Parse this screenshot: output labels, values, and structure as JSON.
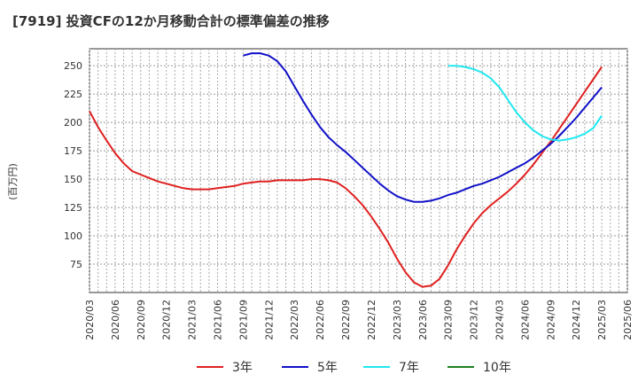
{
  "chart_data": {
    "type": "line",
    "title": "[7919]  投資CFの12か月移動合計の標準偏差の推移",
    "ylabel": "(百万円)",
    "xlabel": "",
    "ylim": [
      50,
      265
    ],
    "yticks": [
      75,
      100,
      125,
      150,
      175,
      200,
      225,
      250
    ],
    "xticks": [
      "2020/03",
      "2020/06",
      "2020/09",
      "2020/12",
      "2021/03",
      "2021/06",
      "2021/09",
      "2021/12",
      "2022/03",
      "2022/06",
      "2022/09",
      "2022/12",
      "2023/03",
      "2023/06",
      "2023/09",
      "2023/12",
      "2024/03",
      "2024/06",
      "2024/09",
      "2024/12",
      "2025/03",
      "2025/06"
    ],
    "grid": true,
    "legend_position": "bottom",
    "series": [
      {
        "name": "3年",
        "color": "#e02020",
        "points": [
          [
            "2020/03",
            210
          ],
          [
            "2020/04",
            196
          ],
          [
            "2020/05",
            184
          ],
          [
            "2020/06",
            173
          ],
          [
            "2020/07",
            164
          ],
          [
            "2020/08",
            157
          ],
          [
            "2020/09",
            154
          ],
          [
            "2020/10",
            151
          ],
          [
            "2020/11",
            148
          ],
          [
            "2020/12",
            146
          ],
          [
            "2021/01",
            144
          ],
          [
            "2021/02",
            142
          ],
          [
            "2021/03",
            141
          ],
          [
            "2021/04",
            141
          ],
          [
            "2021/05",
            141
          ],
          [
            "2021/06",
            142
          ],
          [
            "2021/07",
            143
          ],
          [
            "2021/08",
            144
          ],
          [
            "2021/09",
            146
          ],
          [
            "2021/10",
            147
          ],
          [
            "2021/11",
            148
          ],
          [
            "2021/12",
            148
          ],
          [
            "2022/01",
            149
          ],
          [
            "2022/02",
            149
          ],
          [
            "2022/03",
            149
          ],
          [
            "2022/04",
            149
          ],
          [
            "2022/05",
            150
          ],
          [
            "2022/06",
            150
          ],
          [
            "2022/07",
            149
          ],
          [
            "2022/08",
            147
          ],
          [
            "2022/09",
            142
          ],
          [
            "2022/10",
            135
          ],
          [
            "2022/11",
            127
          ],
          [
            "2022/12",
            117
          ],
          [
            "2023/01",
            106
          ],
          [
            "2023/02",
            94
          ],
          [
            "2023/03",
            80
          ],
          [
            "2023/04",
            68
          ],
          [
            "2023/05",
            59
          ],
          [
            "2023/06",
            55
          ],
          [
            "2023/07",
            56
          ],
          [
            "2023/08",
            62
          ],
          [
            "2023/09",
            74
          ],
          [
            "2023/10",
            88
          ],
          [
            "2023/11",
            100
          ],
          [
            "2023/12",
            111
          ],
          [
            "2024/01",
            120
          ],
          [
            "2024/02",
            127
          ],
          [
            "2024/03",
            133
          ],
          [
            "2024/04",
            139
          ],
          [
            "2024/05",
            146
          ],
          [
            "2024/06",
            154
          ],
          [
            "2024/07",
            163
          ],
          [
            "2024/08",
            173
          ],
          [
            "2024/09",
            183
          ],
          [
            "2024/10",
            194
          ],
          [
            "2024/11",
            205
          ],
          [
            "2024/12",
            216
          ],
          [
            "2025/01",
            227
          ],
          [
            "2025/02",
            238
          ],
          [
            "2025/03",
            249
          ]
        ]
      },
      {
        "name": "5年",
        "color": "#1010c8",
        "points": [
          [
            "2021/09",
            259
          ],
          [
            "2021/10",
            261
          ],
          [
            "2021/11",
            261
          ],
          [
            "2021/12",
            259
          ],
          [
            "2022/01",
            254
          ],
          [
            "2022/02",
            245
          ],
          [
            "2022/03",
            232
          ],
          [
            "2022/04",
            219
          ],
          [
            "2022/05",
            207
          ],
          [
            "2022/06",
            196
          ],
          [
            "2022/07",
            187
          ],
          [
            "2022/08",
            180
          ],
          [
            "2022/09",
            174
          ],
          [
            "2022/10",
            167
          ],
          [
            "2022/11",
            160
          ],
          [
            "2022/12",
            153
          ],
          [
            "2023/01",
            146
          ],
          [
            "2023/02",
            140
          ],
          [
            "2023/03",
            135
          ],
          [
            "2023/04",
            132
          ],
          [
            "2023/05",
            130
          ],
          [
            "2023/06",
            130
          ],
          [
            "2023/07",
            131
          ],
          [
            "2023/08",
            133
          ],
          [
            "2023/09",
            136
          ],
          [
            "2023/10",
            138
          ],
          [
            "2023/11",
            141
          ],
          [
            "2023/12",
            144
          ],
          [
            "2024/01",
            146
          ],
          [
            "2024/02",
            149
          ],
          [
            "2024/03",
            152
          ],
          [
            "2024/04",
            156
          ],
          [
            "2024/05",
            160
          ],
          [
            "2024/06",
            164
          ],
          [
            "2024/07",
            169
          ],
          [
            "2024/08",
            175
          ],
          [
            "2024/09",
            181
          ],
          [
            "2024/10",
            188
          ],
          [
            "2024/11",
            196
          ],
          [
            "2024/12",
            204
          ],
          [
            "2025/01",
            213
          ],
          [
            "2025/02",
            222
          ],
          [
            "2025/03",
            231
          ]
        ]
      },
      {
        "name": "7年",
        "color": "#20e8f0",
        "points": [
          [
            "2023/09",
            250
          ],
          [
            "2023/10",
            250
          ],
          [
            "2023/11",
            249
          ],
          [
            "2023/12",
            247
          ],
          [
            "2024/01",
            244
          ],
          [
            "2024/02",
            239
          ],
          [
            "2024/03",
            231
          ],
          [
            "2024/04",
            220
          ],
          [
            "2024/05",
            209
          ],
          [
            "2024/06",
            200
          ],
          [
            "2024/07",
            193
          ],
          [
            "2024/08",
            188
          ],
          [
            "2024/09",
            185
          ],
          [
            "2024/10",
            184
          ],
          [
            "2024/11",
            185
          ],
          [
            "2024/12",
            187
          ],
          [
            "2025/01",
            190
          ],
          [
            "2025/02",
            195
          ],
          [
            "2025/03",
            206
          ]
        ]
      },
      {
        "name": "10年",
        "color": "#208020",
        "points": []
      }
    ]
  }
}
